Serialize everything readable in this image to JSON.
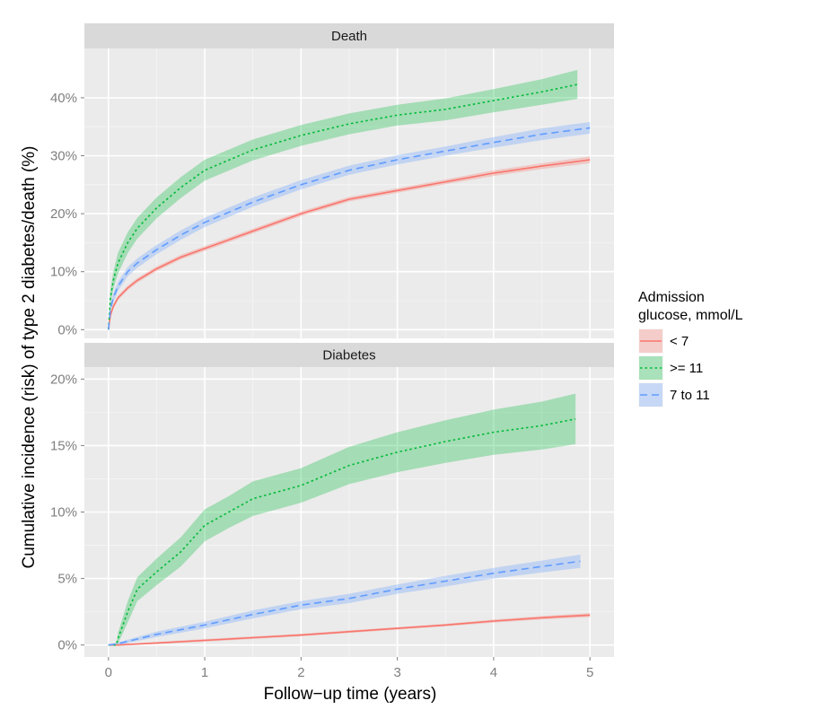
{
  "chart_data": {
    "type": "line",
    "xlabel": "Follow−up time (years)",
    "ylabel": "Cumulative incidence (risk) of type 2 diabetes/death (%)",
    "x_ticks": [
      "0",
      "1",
      "2",
      "3",
      "4",
      "5"
    ],
    "xlim": [
      -0.25,
      5.25
    ],
    "grid": true,
    "legend": {
      "title_lines": [
        "Admission",
        "glucose, mmol/L"
      ],
      "placement": "right",
      "entries": [
        {
          "label": "< 7",
          "color": "#F8766D",
          "dash": "solid"
        },
        {
          "label": ">= 11",
          "color": "#00BA38",
          "dash": "dotted"
        },
        {
          "label": "7 to 11",
          "color": "#619CFF",
          "dash": "dashed"
        }
      ]
    },
    "panels": [
      {
        "strip": "Death",
        "ylim": [
          -1.5,
          48.5
        ],
        "y_ticks": [
          0,
          10,
          20,
          30,
          40
        ],
        "y_tick_labels": [
          "0%",
          "10%",
          "20%",
          "30%",
          "40%"
        ],
        "series": [
          {
            "name": "< 7",
            "color": "#F8766D",
            "dash": "solid",
            "x": [
              0,
              0.02,
              0.05,
              0.1,
              0.2,
              0.3,
              0.5,
              0.75,
              1.0,
              1.5,
              2.0,
              2.5,
              3.0,
              3.5,
              4.0,
              4.5,
              5.0
            ],
            "y": [
              0,
              2.5,
              4.0,
              5.5,
              7.2,
              8.5,
              10.5,
              12.5,
              14.0,
              17.0,
              20.0,
              22.5,
              24.0,
              25.5,
              27.0,
              28.2,
              29.3
            ],
            "band": [
              0.4,
              0.4,
              0.4,
              0.4,
              0.4,
              0.4,
              0.4,
              0.4,
              0.4,
              0.4,
              0.4,
              0.4,
              0.4,
              0.4,
              0.5,
              0.5,
              0.6
            ]
          },
          {
            "name": ">= 11",
            "color": "#00BA38",
            "dash": "dotted",
            "x": [
              0,
              0.02,
              0.05,
              0.1,
              0.2,
              0.3,
              0.5,
              0.75,
              1.0,
              1.5,
              2.0,
              2.5,
              3.0,
              3.5,
              4.0,
              4.5,
              4.87
            ],
            "y": [
              0,
              5.5,
              8.5,
              11.5,
              15.0,
              17.5,
              21.0,
              24.5,
              27.5,
              31.0,
              33.5,
              35.5,
              37.0,
              38.0,
              39.5,
              41.0,
              42.3
            ],
            "band": [
              0.5,
              1.2,
              1.5,
              1.8,
              1.8,
              1.8,
              1.8,
              1.8,
              1.8,
              1.8,
              1.8,
              1.8,
              1.8,
              1.9,
              2.0,
              2.2,
              2.5
            ]
          },
          {
            "name": "7 to 11",
            "color": "#619CFF",
            "dash": "dashed",
            "x": [
              0,
              0.02,
              0.05,
              0.1,
              0.2,
              0.3,
              0.5,
              0.75,
              1.0,
              1.5,
              2.0,
              2.5,
              3.0,
              3.5,
              4.0,
              4.5,
              5.0
            ],
            "y": [
              0,
              3.5,
              5.5,
              7.5,
              10.0,
              11.5,
              13.8,
              16.3,
              18.5,
              22.0,
              25.0,
              27.5,
              29.3,
              30.8,
              32.3,
              33.7,
              34.8
            ],
            "band": [
              0.4,
              0.7,
              0.8,
              0.8,
              0.8,
              0.8,
              0.8,
              0.8,
              0.8,
              0.8,
              0.8,
              0.8,
              0.8,
              0.8,
              0.9,
              1.0,
              1.0
            ]
          }
        ]
      },
      {
        "strip": "Diabetes",
        "ylim": [
          -0.9,
          20.9
        ],
        "y_ticks": [
          0,
          5,
          10,
          15,
          20
        ],
        "y_tick_labels": [
          "0%",
          "5%",
          "10%",
          "15%",
          "20%"
        ],
        "series": [
          {
            "name": "< 7",
            "color": "#F8766D",
            "dash": "solid",
            "x": [
              0,
              0.1,
              0.5,
              1.0,
              1.5,
              2.0,
              2.5,
              3.0,
              3.5,
              4.0,
              4.5,
              5.0
            ],
            "y": [
              0,
              0,
              0.15,
              0.35,
              0.55,
              0.75,
              1.0,
              1.25,
              1.5,
              1.8,
              2.05,
              2.25
            ],
            "band": [
              0,
              0.05,
              0.08,
              0.1,
              0.1,
              0.1,
              0.1,
              0.1,
              0.1,
              0.12,
              0.13,
              0.15
            ]
          },
          {
            "name": ">= 11",
            "color": "#00BA38",
            "dash": "dotted",
            "x": [
              0,
              0.08,
              0.1,
              0.2,
              0.3,
              0.5,
              0.75,
              1.0,
              1.25,
              1.5,
              2.0,
              2.5,
              3.0,
              3.5,
              4.0,
              4.5,
              4.85
            ],
            "y": [
              0,
              0,
              0.5,
              2.5,
              4.2,
              5.5,
              7.0,
              9.0,
              10.0,
              11.0,
              12.0,
              13.5,
              14.5,
              15.3,
              16.0,
              16.5,
              17.0
            ],
            "band": [
              0,
              0,
              0.4,
              0.8,
              0.9,
              1.0,
              1.1,
              1.2,
              1.2,
              1.3,
              1.3,
              1.4,
              1.5,
              1.6,
              1.7,
              1.8,
              1.9
            ]
          },
          {
            "name": "7 to 11",
            "color": "#619CFF",
            "dash": "dashed",
            "x": [
              0,
              0.1,
              0.5,
              1.0,
              1.5,
              2.0,
              2.5,
              3.0,
              3.5,
              4.0,
              4.5,
              4.9
            ],
            "y": [
              0,
              0.1,
              0.8,
              1.5,
              2.3,
              3.0,
              3.5,
              4.2,
              4.8,
              5.4,
              5.9,
              6.3
            ],
            "band": [
              0,
              0.1,
              0.2,
              0.25,
              0.3,
              0.3,
              0.35,
              0.35,
              0.4,
              0.4,
              0.45,
              0.5
            ]
          }
        ]
      }
    ]
  }
}
